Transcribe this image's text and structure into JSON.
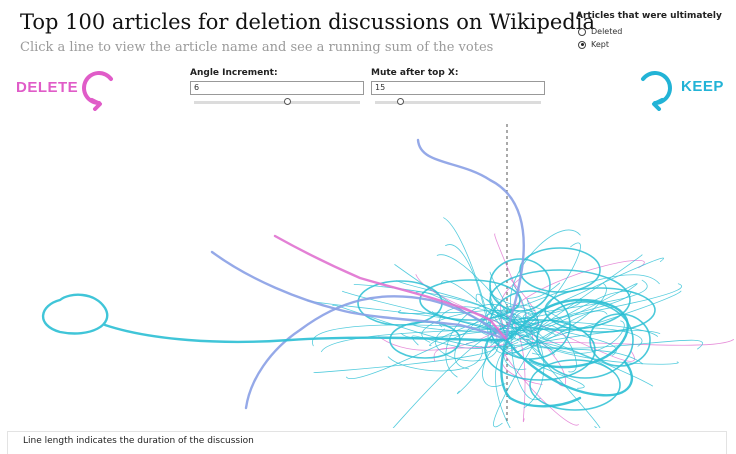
{
  "header": {
    "title": "Top 100 articles for deletion discussions on Wikipedia",
    "subtitle": "Click a line to view the article name and see a running sum of the votes"
  },
  "filter": {
    "title": "Articles that were ultimately",
    "options": [
      {
        "label": "Deleted",
        "selected": false
      },
      {
        "label": "Kept",
        "selected": true
      }
    ]
  },
  "directions": {
    "delete_label": "DELETE",
    "keep_label": "KEEP",
    "delete_color": "#e05cc8",
    "keep_color": "#22b3d6"
  },
  "params": {
    "angle_increment": {
      "label": "Angle Increment:",
      "value": "6"
    },
    "mute_after_top": {
      "label": "Mute after top X:",
      "value": "15"
    }
  },
  "colors": {
    "kept_line": "#2bbfd4",
    "deleted_line": "#e072d0",
    "mixed_line": "#8aa0e6"
  },
  "footer": {
    "note": "Line length indicates the duration of the discussion"
  }
}
